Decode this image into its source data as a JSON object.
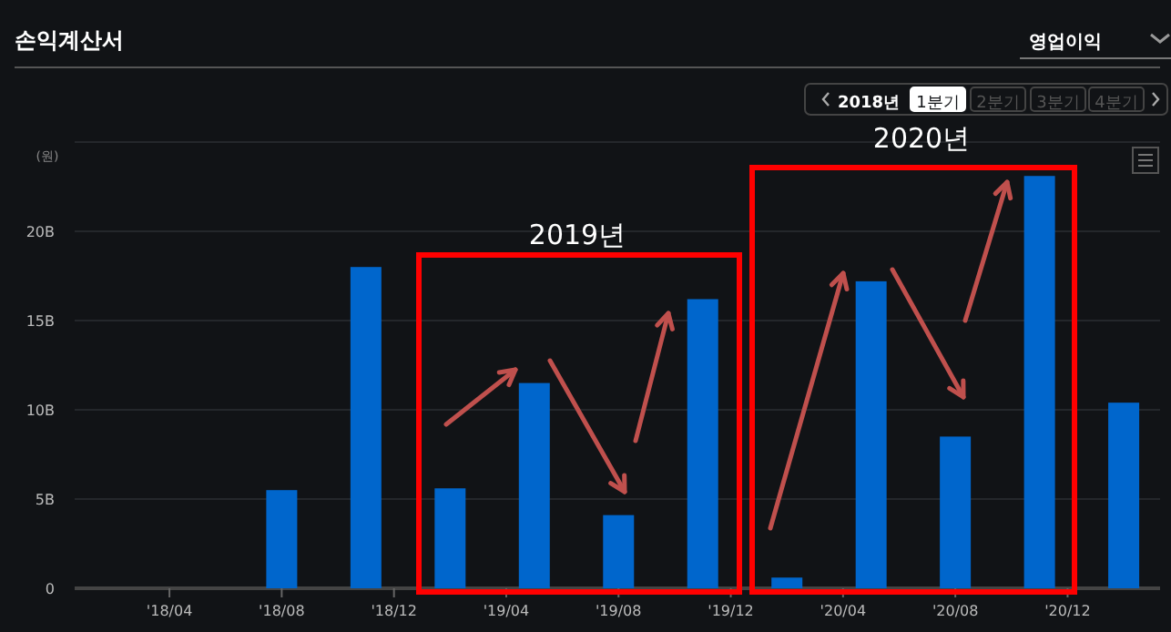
{
  "chart_data": {
    "type": "bar",
    "title": "손익계산서",
    "ylabel": "(원)",
    "annotations": [
      "영업이익",
      "2018년",
      "1분기",
      "2분기",
      "3분기",
      "4분기",
      "2019년",
      "2020년"
    ],
    "x": [
      "2018-08",
      "2018-11",
      "2019-02",
      "2019-05",
      "2019-08",
      "2019-11",
      "2020-02",
      "2020-05",
      "2020-08",
      "2020-11",
      "2021-02"
    ],
    "values": [
      5.5,
      18.0,
      5.6,
      11.5,
      4.1,
      16.2,
      0.6,
      17.2,
      8.5,
      23.1,
      10.4
    ],
    "color": "#0066cc",
    "xlim": [
      "2017-12-20",
      "2021-03-10"
    ],
    "xticks": [
      {
        "value": "2018-04",
        "label": "'18/04"
      },
      {
        "value": "2018-08",
        "label": "'18/08"
      },
      {
        "value": "2018-12",
        "label": "'18/12"
      },
      {
        "value": "2019-04",
        "label": "'19/04"
      },
      {
        "value": "2019-08",
        "label": "'19/08"
      },
      {
        "value": "2019-12",
        "label": "'19/12"
      },
      {
        "value": "2020-04",
        "label": "'20/04"
      },
      {
        "value": "2020-08",
        "label": "'20/08"
      },
      {
        "value": "2020-12",
        "label": "'20/12"
      }
    ],
    "ylim": [
      0,
      25
    ],
    "yticks": [
      {
        "value": 0,
        "label": "0"
      },
      {
        "value": 5,
        "label": "5B"
      },
      {
        "value": 10,
        "label": "10B"
      },
      {
        "value": 15,
        "label": "15B"
      },
      {
        "value": 20,
        "label": "20B"
      },
      {
        "value": 25,
        "label": null
      }
    ],
    "grid": "y"
  }
}
